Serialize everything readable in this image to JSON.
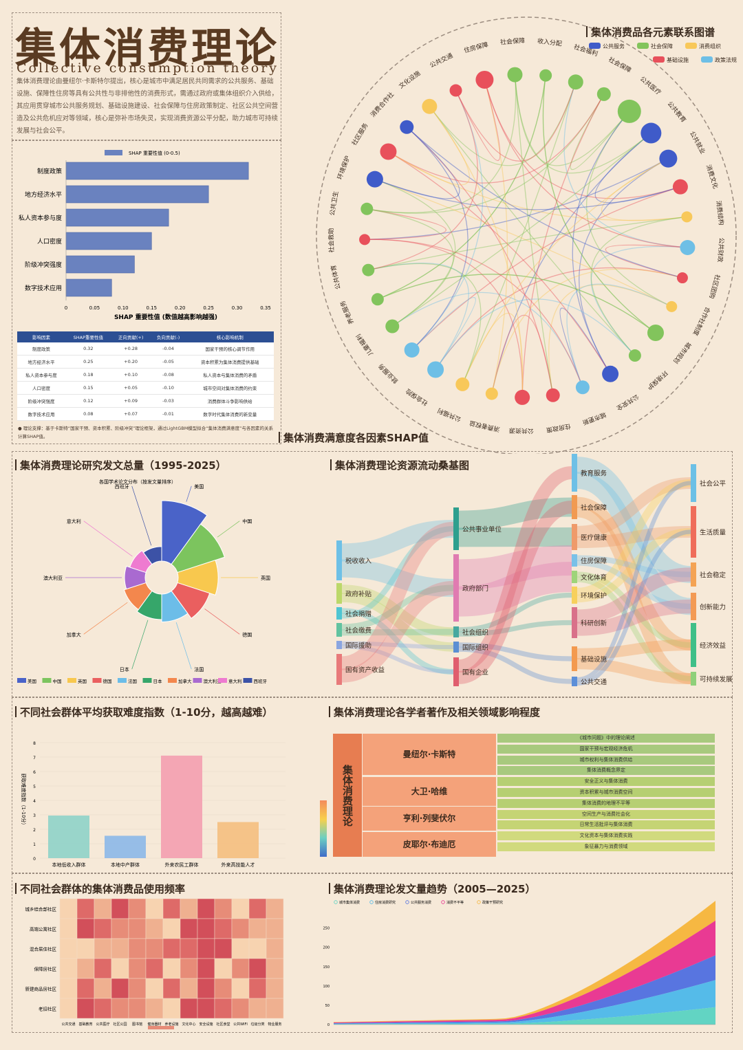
{
  "header": {
    "title": "集体消费理论",
    "subtitle": "Collective consumption theory",
    "intro": "集体消费理论由曼纽尔·卡斯特尔提出，核心是城市中满足居民共同需求的公共服务、基础设施、保障性住房等具有公共性与非排他性的消费形式，需通过政府或集体组织介入供给，其应用贯穿城市公共服务规划、基础设施建设、社会保障与住房政策制定、社区公共空间营造及公共危机应对等领域，核心是弥补市场失灵，实现消费资源公平分配，助力城市可持续发展与社会公平。"
  },
  "network": {
    "title": "集体消费品各元素联系图谱",
    "legend": [
      {
        "label": "公共服务",
        "color": "#3f5bc9"
      },
      {
        "label": "社会保障",
        "color": "#82c45c"
      },
      {
        "label": "消费组织",
        "color": "#f8c85a"
      },
      {
        "label": "基础设施",
        "color": "#e8505b"
      },
      {
        "label": "政策法规",
        "color": "#6ebfe6"
      }
    ],
    "nodes": [
      {
        "label": "收入分配",
        "cat": 1,
        "size": 9
      },
      {
        "label": "社会福利",
        "cat": 1,
        "size": 11
      },
      {
        "label": "社会保障",
        "cat": 1,
        "size": 10
      },
      {
        "label": "公共医疗",
        "cat": 1,
        "size": 17
      },
      {
        "label": "公共教育",
        "cat": 0,
        "size": 15
      },
      {
        "label": "公共就业",
        "cat": 0,
        "size": 13
      },
      {
        "label": "消费文化",
        "cat": 3,
        "size": 11
      },
      {
        "label": "消费结构",
        "cat": 2,
        "size": 8
      },
      {
        "label": "公共财政",
        "cat": 4,
        "size": 11
      },
      {
        "label": "社区团购",
        "cat": 3,
        "size": 8
      },
      {
        "label": "合作社制度",
        "cat": 2,
        "size": 8
      },
      {
        "label": "城市规划",
        "cat": 1,
        "size": 12
      },
      {
        "label": "环境保护",
        "cat": 1,
        "size": 9
      },
      {
        "label": "公共安全",
        "cat": 0,
        "size": 12
      },
      {
        "label": "城市更新",
        "cat": 4,
        "size": 10
      },
      {
        "label": "住房政策",
        "cat": 3,
        "size": 10
      },
      {
        "label": "公共资源",
        "cat": 3,
        "size": 11
      },
      {
        "label": "消费者权益",
        "cat": 2,
        "size": 9
      },
      {
        "label": "公共福利",
        "cat": 2,
        "size": 10
      },
      {
        "label": "社会保险",
        "cat": 4,
        "size": 12
      },
      {
        "label": "就业服务",
        "cat": 4,
        "size": 11
      },
      {
        "label": "儿童福利",
        "cat": 1,
        "size": 10
      },
      {
        "label": "养老服务",
        "cat": 1,
        "size": 9
      },
      {
        "label": "公共体育",
        "cat": 1,
        "size": 9
      },
      {
        "label": "社会救助",
        "cat": 3,
        "size": 8
      },
      {
        "label": "公共卫生",
        "cat": 1,
        "size": 9
      },
      {
        "label": "环境保护",
        "cat": 0,
        "size": 12
      },
      {
        "label": "社区服务",
        "cat": 3,
        "size": 12
      },
      {
        "label": "消费合作社",
        "cat": 0,
        "size": 10
      },
      {
        "label": "文化设施",
        "cat": 2,
        "size": 11
      },
      {
        "label": "公共交通",
        "cat": 3,
        "size": 9
      },
      {
        "label": "住房保障",
        "cat": 3,
        "size": 13
      },
      {
        "label": "社会保障",
        "cat": 1,
        "size": 11
      }
    ]
  },
  "shap": {
    "section_title": "集体消费满意度各因素SHAP值",
    "legend": "SHAP 重要性值 (0-0.5)",
    "xlabel": "SHAP 重要性值 (数值越高影响越强)",
    "table_headers": [
      "影响因素",
      "SHAP重要性值",
      "正向贡献(+)",
      "负向贡献(-)",
      "核心影响机制"
    ],
    "rows": [
      [
        "制度政策",
        "0.32",
        "+0.28",
        "-0.04",
        "国家干预的核心调节作用"
      ],
      [
        "地方经济水平",
        "0.25",
        "+0.20",
        "-0.05",
        "资本积累为集体消费提供基础"
      ],
      [
        "私人资本参与度",
        "0.18",
        "+0.10",
        "-0.08",
        "私人资本与集体消费的矛盾"
      ],
      [
        "人口密度",
        "0.15",
        "+0.05",
        "-0.10",
        "城市空间对集体消费的约束"
      ],
      [
        "阶级冲突强度",
        "0.12",
        "+0.09",
        "-0.03",
        "消费群体斗争影响供给"
      ],
      [
        "数字技术应用",
        "0.08",
        "+0.07",
        "-0.01",
        "数字时代集体消费的新变量"
      ]
    ],
    "note": "● 理论支撑：基于卡斯特“国家干预、资本积累、阶级冲突”理论框架，通过LightGBM模型拟合“集体消费满意度”与各因素的关系计算SHAP值。"
  },
  "chart_data": [
    {
      "type": "bar",
      "orientation": "horizontal",
      "categories": [
        "制度政策",
        "地方经济水平",
        "私人资本参与度",
        "人口密度",
        "阶级冲突强度",
        "数字技术应用"
      ],
      "values": [
        0.32,
        0.25,
        0.18,
        0.15,
        0.12,
        0.08
      ],
      "xlim": [
        0,
        0.35
      ],
      "xticks": [
        "0",
        "0.05",
        "0.10",
        "0.15",
        "0.20",
        "0.25",
        "0.30",
        "0.35"
      ],
      "color": "#6a82bf"
    },
    {
      "type": "pie",
      "title": "集体消费理论研究发文总量（1995-2025）",
      "subtitle": "各国学术论文分布（按发文量排序）",
      "categories": [
        "美国",
        "中国",
        "英国",
        "德国",
        "法国",
        "日本",
        "加拿大",
        "澳大利亚",
        "意大利",
        "西班牙"
      ],
      "values": [
        100,
        82,
        66,
        56,
        46,
        42,
        38,
        34,
        28,
        24
      ],
      "colors": [
        "#4a63c8",
        "#7cc45e",
        "#f8c84e",
        "#ea5f5f",
        "#6cbde8",
        "#36a66a",
        "#f3874d",
        "#a96ad0",
        "#ee7bd0",
        "#3c52a6"
      ]
    },
    {
      "type": "sankey",
      "title": "集体消费理论资源流动桑基图",
      "sources": [
        "税收收入",
        "政府补贴",
        "社会捐赠",
        "社会缴费",
        "国际援助",
        "国有资产收益"
      ],
      "intermediaries": [
        "公共事业单位",
        "政府部门",
        "社会组织",
        "国际组织",
        "国有企业"
      ],
      "sectors": [
        "教育服务",
        "社会保障",
        "医疗健康",
        "住房保障",
        "文化体育",
        "环境保护",
        "科研创新",
        "基础设施",
        "公共交通"
      ],
      "outcomes": [
        "社会公平",
        "生活质量",
        "社会稳定",
        "创新能力",
        "经济效益",
        "可持续发展"
      ]
    },
    {
      "type": "bar",
      "title": "不同社会群体平均获取难度指数（1-10分，越高越难）",
      "ylabel": "获取难度指数（1-10分）",
      "categories": [
        "本地低收入群体",
        "本地中产群体",
        "外来农民工群体",
        "外来高技能人才"
      ],
      "values": [
        2.95,
        1.55,
        7.1,
        2.5
      ],
      "ylim": [
        0,
        8
      ],
      "yticks": [
        "0",
        "1",
        "2",
        "3",
        "4",
        "5",
        "6",
        "7",
        "8"
      ],
      "colors": [
        "#8fd3c9",
        "#8cb8e9",
        "#f49eb0",
        "#f5bf80"
      ]
    },
    {
      "type": "table",
      "title": "集体消费理论各学者著作及相关领域影响程度",
      "root": "集体消费理论",
      "scholars": [
        {
          "name": "曼纽尔·卡斯特",
          "works": [
            "《城市问题》中的理论阐述",
            "国家干预与宏观经济危机",
            "城市权利与集体消费供给",
            "集体消费概念界定"
          ]
        },
        {
          "name": "大卫·哈维",
          "works": [
            "安全正义与集体消费",
            "资本积累与城市消费空间",
            "集体消费的地理不平等"
          ]
        },
        {
          "name": "亨利·列斐伏尔",
          "works": [
            "空间生产与消费社会化",
            "日常生活批评与集体消费"
          ]
        },
        {
          "name": "皮耶尔·布迪厄",
          "works": [
            "文化资本与集体消费实践",
            "象征暴力与消费领域"
          ]
        }
      ]
    },
    {
      "type": "heatmap",
      "title": "不同社会群体的集体消费品使用频率",
      "rows": [
        "城乡结合部社区",
        "高端公寓社区",
        "混合居住社区",
        "保障房社区",
        "新建商品房社区",
        "老旧社区"
      ],
      "columns": [
        "公共交通",
        "基础教育",
        "公共医疗",
        "社区公园",
        "图书馆",
        "健身器材",
        "养老设施",
        "文化中心",
        "安全设施",
        "社区食堂",
        "公共WIFI",
        "垃圾分类",
        "物业服务"
      ]
    },
    {
      "type": "area",
      "title": "集体消费理论发文量趋势（2005—2025）",
      "series": [
        {
          "name": "城市集体消费",
          "color": "#5ad3c2"
        },
        {
          "name": "住房消费研究",
          "color": "#4cb8ea"
        },
        {
          "name": "公共服务消费",
          "color": "#4f6fe0"
        },
        {
          "name": "消费不平等",
          "color": "#e8308f"
        },
        {
          "name": "政策干预研究",
          "color": "#f5b53a"
        }
      ],
      "ylim": [
        0,
        250
      ],
      "yticks": [
        "0",
        "50",
        "100",
        "150",
        "200",
        "250"
      ]
    }
  ],
  "labels": {
    "pie_title": "集体消费理论研究发文总量（1995-2025）",
    "pie_sub": "各国学术论文分布（按发文量排序）",
    "sankey_title": "集体消费理论资源流动桑基图",
    "difficulty_title": "不同社会群体平均获取难度指数（1-10分，越高越难）",
    "difficulty_ylabel": "获取难度指数（1-10分）",
    "scholar_title": "集体消费理论各学者著作及相关领域影响程度",
    "heat_title": "不同社会群体的集体消费品使用频率",
    "trend_title": "集体消费理论发文量趋势（2005—2025）"
  }
}
